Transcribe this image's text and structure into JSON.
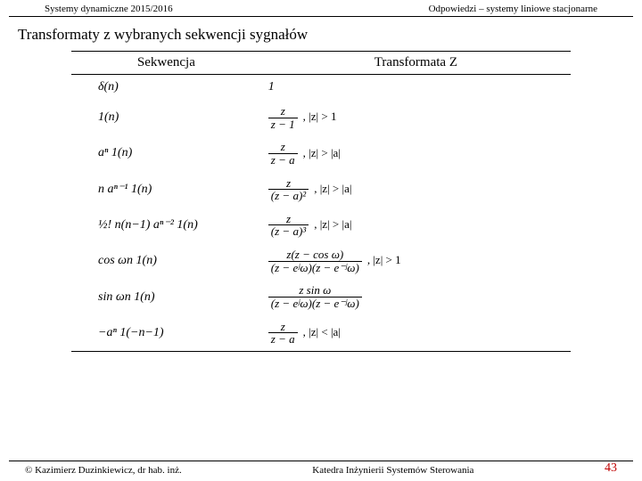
{
  "header": {
    "left": "Systemy dynamiczne 2015/2016",
    "right": "Odpowiedzi – systemy liniowe stacjonarne"
  },
  "title": "Transformaty z wybranych sekwencji sygnałów",
  "table": {
    "col_sequence": "Sekwencja",
    "col_transform": "Transformata Z",
    "rows": [
      {
        "seq": "δ(n)",
        "trf_num": "1",
        "trf_den": "",
        "roc": ""
      },
      {
        "seq": "1(n)",
        "trf_num": "z",
        "trf_den": "z − 1",
        "roc": "|z| > 1"
      },
      {
        "seq": "aⁿ 1(n)",
        "trf_num": "z",
        "trf_den": "z − a",
        "roc": "|z| > |a|"
      },
      {
        "seq": "n aⁿ⁻¹ 1(n)",
        "trf_num": "z",
        "trf_den": "(z − a)²",
        "roc": "|z| > |a|"
      },
      {
        "seq": "½! n(n−1) aⁿ⁻² 1(n)",
        "trf_num": "z",
        "trf_den": "(z − a)³",
        "roc": "|z| > |a|"
      },
      {
        "seq": "cos ωn 1(n)",
        "trf_num": "z(z − cos ω)",
        "trf_den": "(z − eʲω)(z − e⁻ʲω)",
        "roc": "|z| > 1"
      },
      {
        "seq": "sin ωn 1(n)",
        "trf_num": "z sin ω",
        "trf_den": "(z − eʲω)(z − e⁻ʲω)",
        "roc": ""
      },
      {
        "seq": "−aⁿ 1(−n−1)",
        "trf_num": "z",
        "trf_den": "z − a",
        "roc": "|z| < |a|"
      }
    ]
  },
  "footer": {
    "left": "© Kazimierz Duzinkiewicz, dr hab. inż.",
    "center": "Katedra Inżynierii Systemów Sterowania",
    "page": "43"
  }
}
